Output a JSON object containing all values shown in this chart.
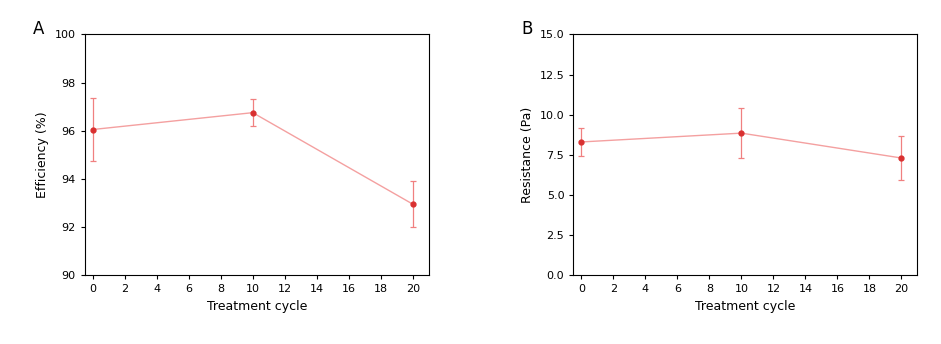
{
  "panel_A": {
    "x": [
      0,
      10,
      20
    ],
    "y": [
      96.05,
      96.75,
      92.95
    ],
    "yerr": [
      1.3,
      0.55,
      0.95
    ],
    "ylabel": "Efficiency (%)",
    "ylim": [
      90,
      100
    ],
    "yticks": [
      90,
      92,
      94,
      96,
      98,
      100
    ],
    "ytick_labels": [
      "90",
      "92",
      "94",
      "96",
      "98",
      "100"
    ],
    "xlabel": "Treatment cycle",
    "xticks": [
      0,
      2,
      4,
      6,
      8,
      10,
      12,
      14,
      16,
      18,
      20
    ],
    "xlim": [
      -0.5,
      21
    ],
    "label": "A"
  },
  "panel_B": {
    "x": [
      0,
      10,
      20
    ],
    "y": [
      8.3,
      8.85,
      7.3
    ],
    "yerr": [
      0.85,
      1.55,
      1.35
    ],
    "ylabel": "Resistance (Pa)",
    "ylim": [
      0,
      15
    ],
    "yticks": [
      0.0,
      2.5,
      5.0,
      7.5,
      10.0,
      12.5,
      15.0
    ],
    "ytick_labels": [
      "0.0",
      "2.5",
      "5.0",
      "7.5",
      "10.0",
      "12.5",
      "15.0"
    ],
    "xlabel": "Treatment cycle",
    "xticks": [
      0,
      2,
      4,
      6,
      8,
      10,
      12,
      14,
      16,
      18,
      20
    ],
    "xlim": [
      -0.5,
      21
    ],
    "label": "B"
  },
  "line_color": "#f4a0a0",
  "marker_color": "#d93030",
  "marker": "o",
  "markersize": 3.5,
  "linewidth": 1.0,
  "capsize": 2.5,
  "elinewidth": 0.9,
  "ecolor": "#f08080",
  "background_color": "#ffffff",
  "tick_fontsize": 8,
  "label_fontsize": 9,
  "panel_label_fontsize": 12
}
